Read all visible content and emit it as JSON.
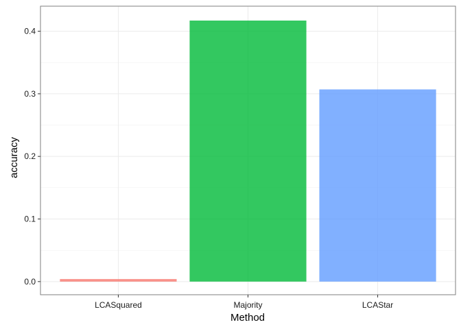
{
  "chart_data": {
    "type": "bar",
    "xlabel": "Method",
    "ylabel": "accuracy",
    "categories": [
      "LCASquared",
      "Majority",
      "LCAStar"
    ],
    "values": [
      0.004,
      0.417,
      0.307
    ],
    "colors": [
      "#F8766D",
      "#00BA38",
      "#619CFF"
    ],
    "ylim": [
      -0.021,
      0.44
    ],
    "yticks": [
      0.0,
      0.1,
      0.2,
      0.3,
      0.4
    ],
    "ytick_labels": [
      "0.0",
      "0.1",
      "0.2",
      "0.3",
      "0.4"
    ],
    "grid": true,
    "legend": "none",
    "theme": "bw"
  }
}
